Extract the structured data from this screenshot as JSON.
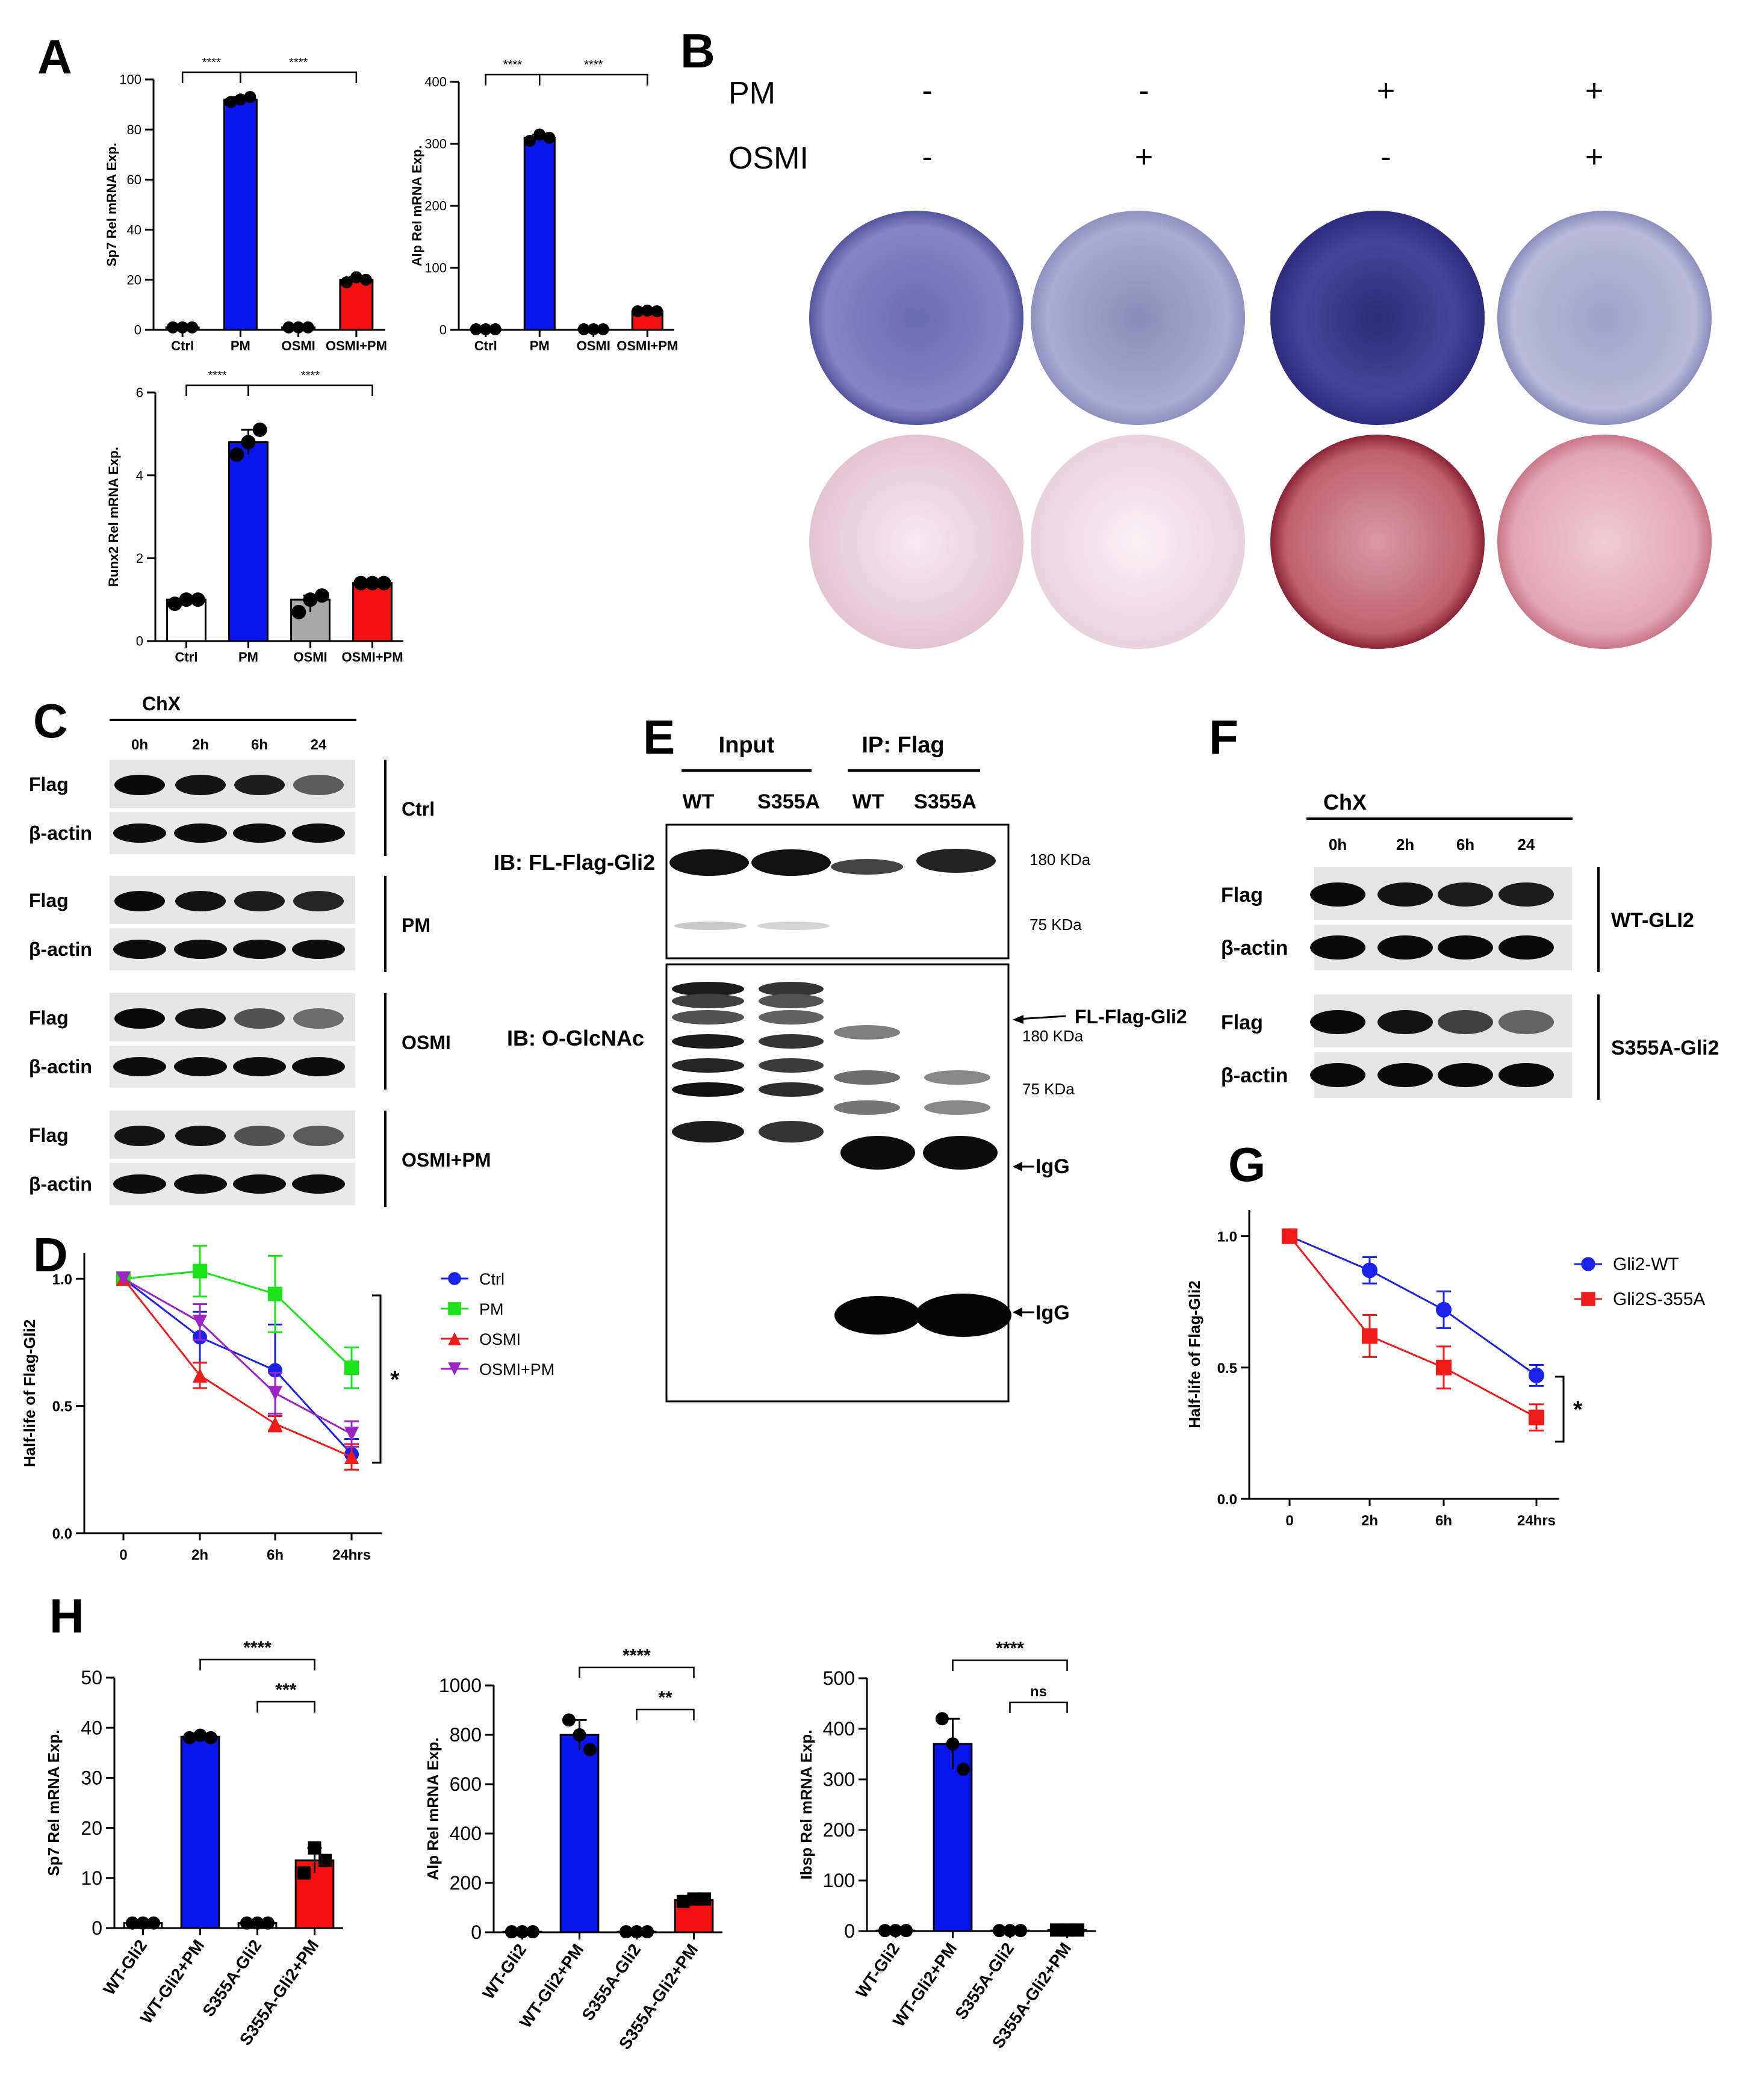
{
  "panel_letters": {
    "A": "A",
    "B": "B",
    "C": "C",
    "D": "D",
    "E": "E",
    "F": "F",
    "G": "G",
    "H": "H"
  },
  "colors": {
    "ctrl": "#ffffff",
    "pm": "#0a16f0",
    "osmi_grey": "#a8a8a8",
    "osmi_pm": "#f51010",
    "wt": "#1b22e8",
    "mut": "#ee1b1b",
    "green": "#1be31b",
    "purple": "#9b24c4",
    "plateBlue": "#6f6fb4",
    "plateRed": "#b94a5a"
  },
  "chart_data": [
    {
      "id": "A1",
      "type": "bar",
      "ylabel": "Sp7 Rel mRNA Exp.",
      "ylim": [
        0,
        100
      ],
      "yticks": [
        0,
        20,
        40,
        60,
        80,
        100
      ],
      "categories": [
        "Ctrl",
        "PM",
        "OSMI",
        "OSMI+PM"
      ],
      "values": [
        1,
        92,
        1,
        20
      ],
      "points": [
        [
          1,
          1,
          1
        ],
        [
          91,
          92,
          93
        ],
        [
          1,
          1,
          1
        ],
        [
          19,
          21,
          20
        ]
      ],
      "sig": [
        {
          "from": 0,
          "to": 1,
          "label": "****"
        },
        {
          "from": 1,
          "to": 3,
          "label": "****"
        }
      ]
    },
    {
      "id": "A2",
      "type": "bar",
      "ylabel": "Alp Rel mRNA Exp.",
      "ylim": [
        0,
        400
      ],
      "yticks": [
        0,
        100,
        200,
        300,
        400
      ],
      "categories": [
        "Ctrl",
        "PM",
        "OSMI",
        "OSMI+PM"
      ],
      "values": [
        1,
        310,
        1,
        30
      ],
      "points": [
        [
          1,
          1,
          1
        ],
        [
          305,
          315,
          310
        ],
        [
          1,
          1,
          1
        ],
        [
          30,
          31,
          30
        ]
      ],
      "sig": [
        {
          "from": 0,
          "to": 1,
          "label": "****"
        },
        {
          "from": 1,
          "to": 3,
          "label": "****"
        }
      ]
    },
    {
      "id": "A3",
      "type": "bar",
      "ylabel": "Runx2 Rel mRNA Exp.",
      "ylim": [
        0,
        6
      ],
      "yticks": [
        0,
        2,
        4,
        6
      ],
      "categories": [
        "Ctrl",
        "PM",
        "OSMI",
        "OSMI+PM"
      ],
      "values": [
        1,
        4.8,
        1,
        1.4
      ],
      "points": [
        [
          0.9,
          1,
          1
        ],
        [
          4.5,
          4.8,
          5.1
        ],
        [
          0.7,
          1,
          1.1
        ],
        [
          1.4,
          1.4,
          1.4
        ]
      ],
      "sig": [
        {
          "from": 0,
          "to": 1,
          "label": "****"
        },
        {
          "from": 1,
          "to": 3,
          "label": "****"
        }
      ]
    },
    {
      "id": "D",
      "type": "line",
      "ylabel": "Half-life of Flag-Gli2",
      "ylim": [
        0,
        1.1
      ],
      "yticks": [
        0.0,
        0.5,
        1.0
      ],
      "x": [
        "0",
        "2h",
        "6h",
        "24hrs"
      ],
      "series": [
        {
          "name": "Ctrl",
          "values": [
            1.0,
            0.77,
            0.64,
            0.31
          ],
          "err": [
            0,
            0.1,
            0.18,
            0.06
          ],
          "marker": "circle"
        },
        {
          "name": "PM",
          "values": [
            1.0,
            1.03,
            0.94,
            0.65
          ],
          "err": [
            0,
            0.1,
            0.15,
            0.08
          ],
          "marker": "square"
        },
        {
          "name": "OSMI",
          "values": [
            1.0,
            0.62,
            0.43,
            0.3
          ],
          "err": [
            0,
            0.05,
            0.03,
            0.05
          ],
          "marker": "triangle"
        },
        {
          "name": "OSMI+PM",
          "values": [
            1.0,
            0.83,
            0.55,
            0.39
          ],
          "err": [
            0,
            0.07,
            0.08,
            0.05
          ],
          "marker": "triangle-down"
        }
      ],
      "annotation": "*"
    },
    {
      "id": "G",
      "type": "line",
      "ylabel": "Half-life of Flag-Gli2",
      "ylim": [
        0,
        1.1
      ],
      "yticks": [
        0.0,
        0.5,
        1.0
      ],
      "x": [
        "0",
        "2h",
        "6h",
        "24hrs"
      ],
      "series": [
        {
          "name": "Gli2-WT",
          "values": [
            1.0,
            0.87,
            0.72,
            0.47
          ],
          "err": [
            0,
            0.05,
            0.07,
            0.04
          ],
          "marker": "circle"
        },
        {
          "name": "Gli2S-355A",
          "values": [
            1.0,
            0.62,
            0.5,
            0.31
          ],
          "err": [
            0,
            0.08,
            0.08,
            0.05
          ],
          "marker": "square"
        }
      ],
      "annotation": "*"
    },
    {
      "id": "H1",
      "type": "bar",
      "ylabel": "Sp7 Rel mRNA Exp.",
      "ylim": [
        0,
        50
      ],
      "yticks": [
        0,
        10,
        20,
        30,
        40,
        50
      ],
      "categories": [
        "WT-Gli2",
        "WT-Gli2+PM",
        "S355A-Gli2",
        "S355A-Gli2+PM"
      ],
      "values": [
        1,
        38.2,
        1,
        13.5
      ],
      "points": [
        [
          1,
          1,
          1
        ],
        [
          38,
          38.5,
          38
        ],
        [
          1,
          1,
          1
        ],
        [
          11,
          16,
          13.5
        ]
      ],
      "sig": [
        {
          "from": 1,
          "to": 3,
          "label": "****"
        },
        {
          "from": 2,
          "to": 3,
          "label": "***"
        }
      ]
    },
    {
      "id": "H2",
      "type": "bar",
      "ylabel": "Alp Rel mRNA Exp.",
      "ylim": [
        0,
        1000
      ],
      "yticks": [
        0,
        200,
        400,
        600,
        800,
        1000
      ],
      "categories": [
        "WT-Gli2",
        "WT-Gli2+PM",
        "S355A-Gli2",
        "S355A-Gli2+PM"
      ],
      "values": [
        2,
        800,
        2,
        130
      ],
      "points": [
        [
          2,
          2,
          2
        ],
        [
          860,
          800,
          740
        ],
        [
          2,
          2,
          2
        ],
        [
          125,
          135,
          135
        ]
      ],
      "sig": [
        {
          "from": 1,
          "to": 3,
          "label": "****"
        },
        {
          "from": 2,
          "to": 3,
          "label": "**"
        }
      ]
    },
    {
      "id": "H3",
      "type": "bar",
      "ylabel": "Ibsp Rel mRNA Exp.",
      "ylim": [
        0,
        500
      ],
      "yticks": [
        0,
        100,
        200,
        300,
        400,
        500
      ],
      "categories": [
        "WT-Gli2",
        "WT-Gli2+PM",
        "S355A-Gli2",
        "S355A-Gli2+PM"
      ],
      "values": [
        1,
        370,
        1,
        2
      ],
      "points": [
        [
          1,
          1,
          1
        ],
        [
          420,
          370,
          320
        ],
        [
          1,
          1,
          1
        ],
        [
          2,
          2,
          2
        ]
      ],
      "sig": [
        {
          "from": 1,
          "to": 3,
          "label": "****"
        },
        {
          "from": 2,
          "to": 3,
          "label": "ns"
        }
      ]
    }
  ],
  "panelB": {
    "row1_label": "PM",
    "row2_label": "OSMI",
    "pm": [
      "-",
      "-",
      "+",
      "+"
    ],
    "osmi": [
      "-",
      "+",
      "-",
      "+"
    ]
  },
  "panelC": {
    "header": "ChX",
    "times": [
      "0h",
      "2h",
      "6h",
      "24"
    ],
    "flag": "Flag",
    "actin": "β-actin",
    "groups": [
      "Ctrl",
      "PM",
      "OSMI",
      "OSMI+PM"
    ]
  },
  "panelE": {
    "input": "Input",
    "ip": "IP: Flag",
    "lanes": [
      "WT",
      "S355A",
      "WT",
      "S355A"
    ],
    "ib1": "IB: FL-Flag-Gli2",
    "ib2": "IB: O-GlcNAc",
    "kda180": "180 KDa",
    "kda75": "75 KDa",
    "fl_arrow": "FL-Flag-Gli2",
    "igg": "IgG"
  },
  "panelF": {
    "header": "ChX",
    "times": [
      "0h",
      "2h",
      "6h",
      "24"
    ],
    "flag": "Flag",
    "actin": "β-actin",
    "groups": [
      "WT-GLI2",
      "S355A-Gli2"
    ]
  }
}
